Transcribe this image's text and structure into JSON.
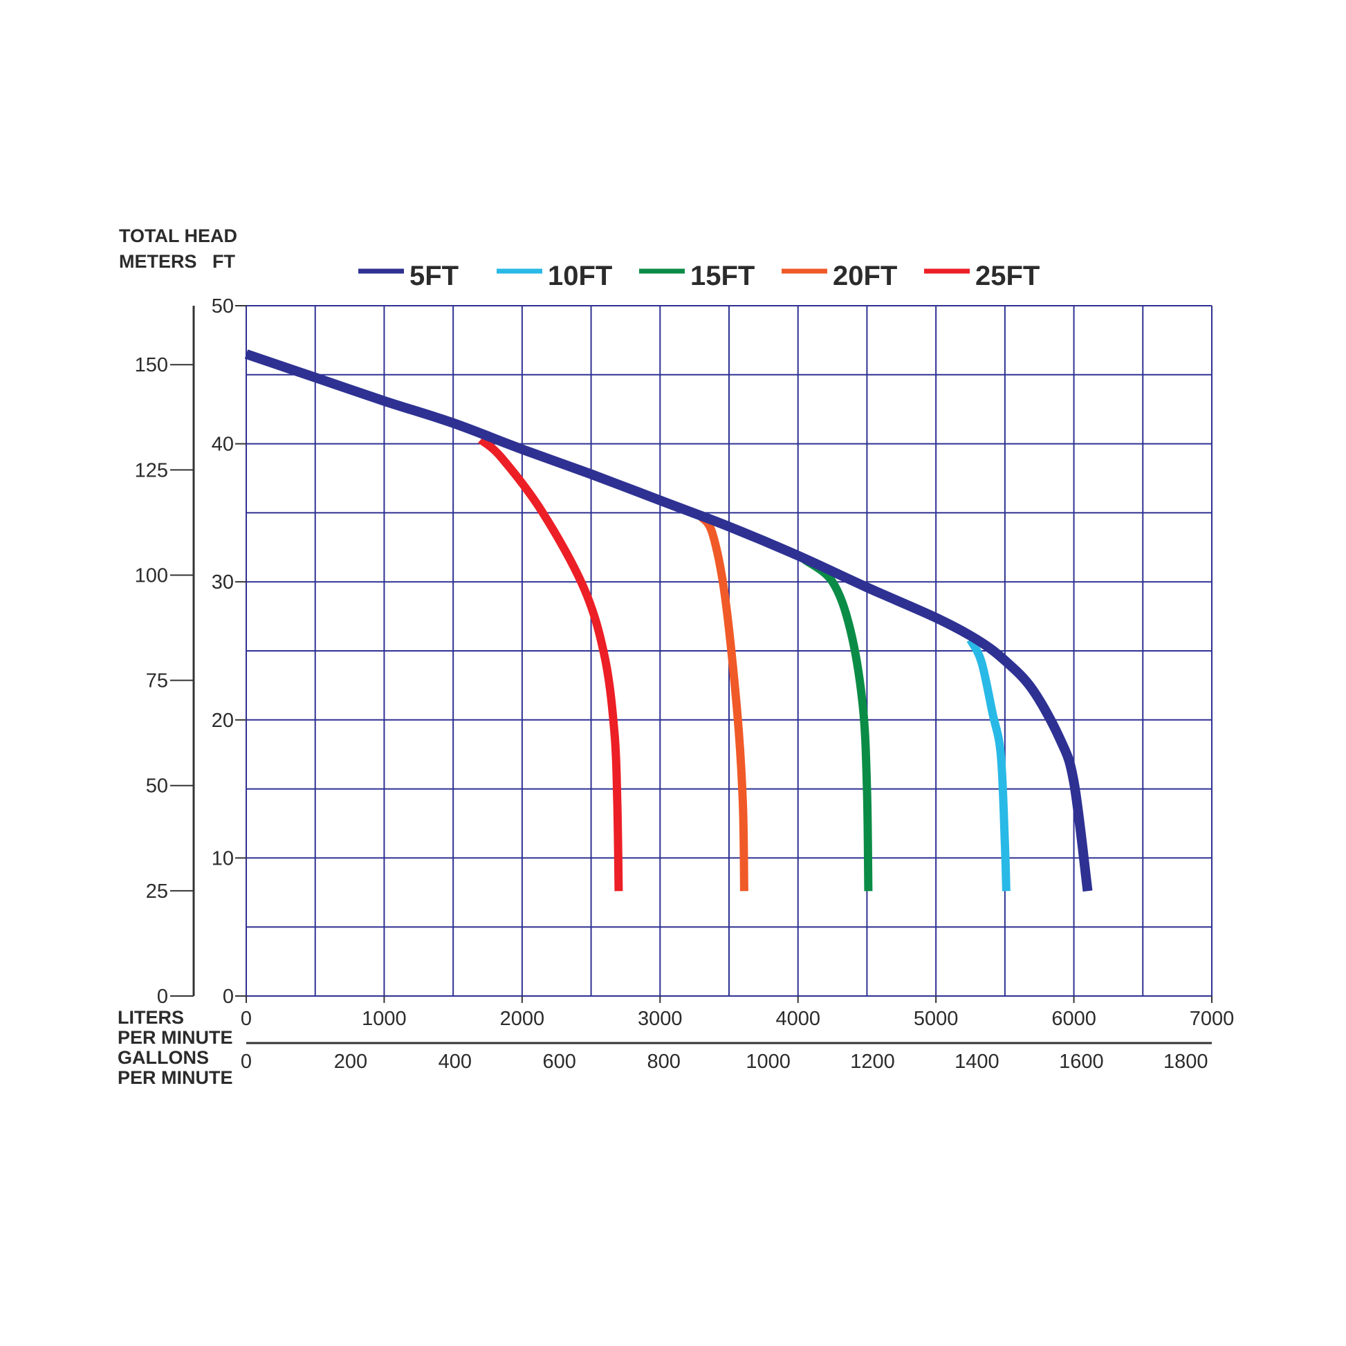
{
  "chart_data": {
    "type": "line",
    "y_axis_title_lines": [
      "TOTAL HEAD",
      "METERS   FT"
    ],
    "x_axis_lpm_label_lines": [
      "LITERS",
      "PER MINUTE"
    ],
    "x_axis_gpm_label_lines": [
      "GALLONS",
      "PER MINUTE"
    ],
    "x_liters_ticks": [
      "0",
      "1000",
      "2000",
      "3000",
      "4000",
      "5000",
      "6000",
      "7000"
    ],
    "x_liters_range": [
      0,
      7000
    ],
    "x_gallons_ticks": [
      "0",
      "200",
      "400",
      "600",
      "800",
      "1000",
      "1200",
      "1400",
      "1600",
      "1800"
    ],
    "x_gallons_range": [
      0,
      1850
    ],
    "y_meters_ticks": [
      "0",
      "10",
      "20",
      "30",
      "40",
      "50"
    ],
    "y_meters_range": [
      0,
      50
    ],
    "y_feet_ticks": [
      "0",
      "25",
      "50",
      "75",
      "100",
      "125",
      "150"
    ],
    "y_feet_range": [
      0,
      164
    ],
    "grid": true,
    "grid_color": "#2e3192",
    "legend_position": "top",
    "series": [
      {
        "name": "5FT",
        "color": "#2e3192",
        "points": [
          [
            0,
            46.5
          ],
          [
            500,
            44.8
          ],
          [
            1000,
            43.1
          ],
          [
            1500,
            41.5
          ],
          [
            2000,
            39.6
          ],
          [
            2500,
            37.8
          ],
          [
            3000,
            35.9
          ],
          [
            3500,
            34.0
          ],
          [
            4000,
            31.9
          ],
          [
            4500,
            29.6
          ],
          [
            5000,
            27.4
          ],
          [
            5300,
            25.8
          ],
          [
            5500,
            24.3
          ],
          [
            5700,
            22.2
          ],
          [
            5900,
            18.6
          ],
          [
            6000,
            15.5
          ],
          [
            6100,
            7.6
          ]
        ]
      },
      {
        "name": "10FT",
        "color": "#29b9e6",
        "points": [
          [
            5250,
            25.8
          ],
          [
            5330,
            24.2
          ],
          [
            5410,
            20.5
          ],
          [
            5470,
            17.5
          ],
          [
            5500,
            11.0
          ],
          [
            5510,
            7.6
          ]
        ]
      },
      {
        "name": "15FT",
        "color": "#0b8c46",
        "points": [
          [
            4050,
            31.6
          ],
          [
            4250,
            30.0
          ],
          [
            4380,
            26.5
          ],
          [
            4470,
            21.0
          ],
          [
            4500,
            15.0
          ],
          [
            4510,
            7.6
          ]
        ]
      },
      {
        "name": "20FT",
        "color": "#f05a28",
        "points": [
          [
            3300,
            34.7
          ],
          [
            3380,
            33.5
          ],
          [
            3470,
            29.0
          ],
          [
            3560,
            20.5
          ],
          [
            3600,
            14.0
          ],
          [
            3610,
            7.6
          ]
        ]
      },
      {
        "name": "25FT",
        "color": "#ec1f26",
        "points": [
          [
            1700,
            40.3
          ],
          [
            1850,
            39.0
          ],
          [
            2150,
            35.0
          ],
          [
            2450,
            29.5
          ],
          [
            2600,
            24.5
          ],
          [
            2670,
            19.0
          ],
          [
            2690,
            14.0
          ],
          [
            2700,
            7.6
          ]
        ]
      }
    ]
  }
}
